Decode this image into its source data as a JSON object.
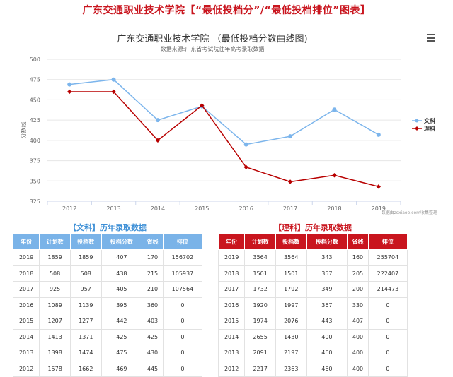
{
  "page": {
    "title": "广东交通职业技术学院【“最低投档分”/“最低投档排位”图表】"
  },
  "chart_data": {
    "type": "line",
    "title": "广东交通职业技术学院 （最低投档分数曲线图)",
    "subtitle": "数据来源:广东省考试院往年高考录取数据",
    "ylabel": "分数线",
    "xlabel": "",
    "categories": [
      "2012",
      "2013",
      "2014",
      "2015",
      "2016",
      "2017",
      "2018",
      "2019"
    ],
    "ylim": [
      325,
      500
    ],
    "yticks": [
      325,
      350,
      375,
      400,
      425,
      450,
      475,
      500
    ],
    "grid": true,
    "legend_position": "right",
    "watermark": "数据由zsxiaoe.com收集整理",
    "series": [
      {
        "name": "文科",
        "color": "#7cb5ec",
        "values": [
          469,
          475,
          425,
          442,
          395,
          405,
          438,
          407
        ]
      },
      {
        "name": "理科",
        "color": "#b80000",
        "values": [
          460,
          460,
          400,
          443,
          367,
          349,
          357,
          343
        ]
      }
    ]
  },
  "tables": {
    "headers": [
      "年份",
      "计划数",
      "投档数",
      "投档分数",
      "省线",
      "排位"
    ],
    "wen": {
      "title": "【文科】历年录取数据",
      "rows": [
        [
          "2019",
          "1859",
          "1859",
          "407",
          "170",
          "156702"
        ],
        [
          "2018",
          "508",
          "508",
          "438",
          "215",
          "105937"
        ],
        [
          "2017",
          "925",
          "957",
          "405",
          "210",
          "107564"
        ],
        [
          "2016",
          "1089",
          "1139",
          "395",
          "360",
          "0"
        ],
        [
          "2015",
          "1207",
          "1277",
          "442",
          "403",
          "0"
        ],
        [
          "2014",
          "1413",
          "1371",
          "425",
          "425",
          "0"
        ],
        [
          "2013",
          "1398",
          "1474",
          "475",
          "430",
          "0"
        ],
        [
          "2012",
          "1578",
          "1662",
          "469",
          "445",
          "0"
        ]
      ]
    },
    "li": {
      "title": "【理科】历年录取数据",
      "rows": [
        [
          "2019",
          "3564",
          "3564",
          "343",
          "160",
          "255704"
        ],
        [
          "2018",
          "1501",
          "1501",
          "357",
          "205",
          "222407"
        ],
        [
          "2017",
          "1732",
          "1792",
          "349",
          "200",
          "214473"
        ],
        [
          "2016",
          "1920",
          "1997",
          "367",
          "330",
          "0"
        ],
        [
          "2015",
          "1974",
          "2076",
          "443",
          "407",
          "0"
        ],
        [
          "2014",
          "2655",
          "1430",
          "400",
          "400",
          "0"
        ],
        [
          "2013",
          "2091",
          "2197",
          "460",
          "400",
          "0"
        ],
        [
          "2012",
          "2217",
          "2363",
          "460",
          "400",
          "0"
        ]
      ]
    }
  }
}
